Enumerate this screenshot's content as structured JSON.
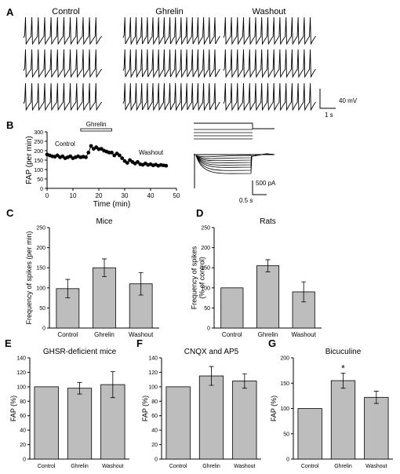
{
  "panel_labels": [
    "A",
    "B",
    "C",
    "D",
    "E",
    "F",
    "G"
  ],
  "panel_a": {
    "titles": [
      "Control",
      "Ghrelin",
      "Washout"
    ],
    "scale_voltage": "40 mV",
    "scale_time": "1 s",
    "spikes_per_trace": [
      12,
      17,
      15
    ]
  },
  "panel_b_right": {
    "scale_current": "500 pA",
    "scale_time": "0.5 s"
  },
  "chart_data": [
    {
      "panel": "B",
      "type": "line",
      "title": "",
      "xlabel": "Time (min)",
      "ylabel": "FAP (per min)",
      "xlim": [
        0,
        50
      ],
      "ylim": [
        0,
        300
      ],
      "xticks": [
        0,
        10,
        20,
        30,
        40,
        50
      ],
      "yticks": [
        0,
        50,
        100,
        150,
        200,
        250,
        300
      ],
      "annotations": [
        "Ghrelin",
        "Control",
        "Washout"
      ],
      "ghrelin_bar": [
        13,
        25
      ],
      "x": [
        0,
        1,
        2,
        3,
        4,
        5,
        6,
        7,
        8,
        9,
        10,
        11,
        12,
        13,
        14,
        15,
        16,
        17,
        18,
        19,
        20,
        21,
        22,
        23,
        24,
        25,
        26,
        27,
        28,
        29,
        30,
        31,
        32,
        33,
        34,
        35,
        36,
        37,
        38,
        39,
        40,
        41,
        42,
        43,
        44,
        45,
        46
      ],
      "y": [
        180,
        175,
        170,
        168,
        175,
        165,
        170,
        160,
        165,
        170,
        160,
        165,
        170,
        165,
        168,
        165,
        190,
        225,
        210,
        218,
        208,
        210,
        200,
        195,
        190,
        190,
        175,
        185,
        175,
        160,
        145,
        135,
        150,
        140,
        132,
        140,
        128,
        125,
        132,
        124,
        128,
        122,
        126,
        120,
        124,
        122,
        120
      ]
    },
    {
      "panel": "C",
      "type": "bar",
      "title": "Mice",
      "ylabel": "Frequency of spikes (per min)",
      "ylim": [
        0,
        250
      ],
      "yticks": [
        0,
        50,
        100,
        150,
        200,
        250
      ],
      "categories": [
        "Control",
        "Ghrelin",
        "Washout"
      ],
      "values": [
        98,
        150,
        110
      ],
      "errors": [
        23,
        22,
        28
      ]
    },
    {
      "panel": "D",
      "type": "bar",
      "title": "Rats",
      "ylabel": "Frequency of spikes (% of control)",
      "ylim": [
        0,
        250
      ],
      "yticks": [
        0,
        50,
        100,
        150,
        200,
        250
      ],
      "categories": [
        "Control",
        "Ghrelin",
        "Washout"
      ],
      "values": [
        100,
        155,
        90
      ],
      "errors": [
        0,
        15,
        25
      ]
    },
    {
      "panel": "E",
      "type": "bar",
      "title": "GHSR-deficient mice",
      "ylabel": "FAP (%)",
      "ylim": [
        0,
        140
      ],
      "yticks": [
        0,
        20,
        40,
        60,
        80,
        100,
        120,
        140
      ],
      "categories": [
        "Control",
        "Ghrelin",
        "Washout"
      ],
      "values": [
        100,
        98,
        103
      ],
      "errors": [
        0,
        8,
        18
      ]
    },
    {
      "panel": "F",
      "type": "bar",
      "title": "CNQX and AP5",
      "ylabel": "FAP (%)",
      "ylim": [
        0,
        140
      ],
      "yticks": [
        0,
        20,
        40,
        60,
        80,
        100,
        120,
        140
      ],
      "categories": [
        "Control",
        "Ghrelin",
        "Washout"
      ],
      "values": [
        100,
        115,
        108
      ],
      "errors": [
        0,
        13,
        10
      ]
    },
    {
      "panel": "G",
      "type": "bar",
      "title": "Bicuculine",
      "ylabel": "FAP (%)",
      "ylim": [
        0,
        200
      ],
      "yticks": [
        0,
        50,
        100,
        150,
        200
      ],
      "categories": [
        "Control",
        "Ghrelin",
        "Washout"
      ],
      "values": [
        100,
        155,
        122
      ],
      "errors": [
        0,
        15,
        12
      ],
      "significance": [
        "",
        "*",
        ""
      ]
    }
  ],
  "colors": {
    "bar": "#bdbdbd",
    "ink": "#000000"
  }
}
